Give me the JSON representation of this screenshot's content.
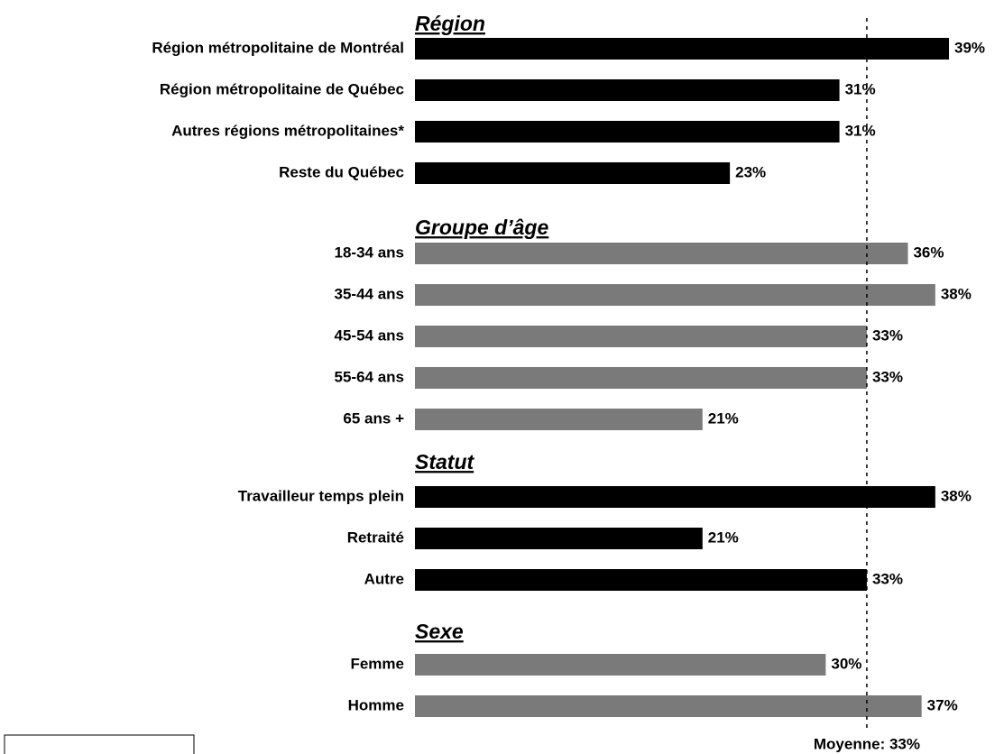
{
  "chart_data": {
    "type": "bar",
    "groups": [
      {
        "name": "Région",
        "color": "#000000",
        "categories": [
          "Région métropolitaine de Montréal",
          "Région métropolitaine de Québec",
          "Autres régions métropolitaines*",
          "Reste du Québec"
        ],
        "values": [
          39,
          31,
          31,
          23
        ],
        "value_labels": [
          "39%",
          "31%",
          "31%",
          "23%"
        ]
      },
      {
        "name": "Groupe d’âge",
        "color": "#7a7a7a",
        "categories": [
          "18-34 ans",
          "35-44 ans",
          "45-54 ans",
          "55-64 ans",
          "65 ans +"
        ],
        "values": [
          36,
          38,
          33,
          33,
          21
        ],
        "value_labels": [
          "36%",
          "38%",
          "33%",
          "33%",
          "21%"
        ]
      },
      {
        "name": "Statut",
        "color": "#000000",
        "categories": [
          "Travailleur temps plein",
          "Retraité",
          "Autre"
        ],
        "values": [
          38,
          21,
          33
        ],
        "value_labels": [
          "38%",
          "21%",
          "33%"
        ]
      },
      {
        "name": "Sexe",
        "color": "#7a7a7a",
        "categories": [
          "Femme",
          "Homme"
        ],
        "values": [
          30,
          37
        ],
        "value_labels": [
          "30%",
          "37%"
        ]
      }
    ],
    "average": {
      "value": 33,
      "label": "Moyenne: 33%"
    }
  }
}
